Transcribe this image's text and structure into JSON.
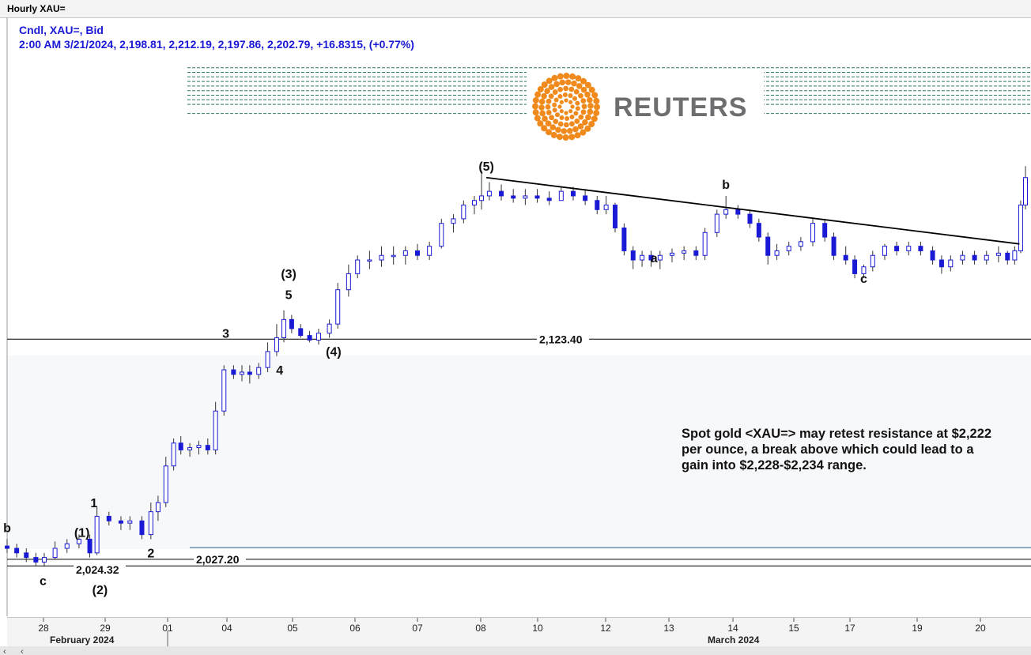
{
  "window": {
    "title": "Hourly XAU="
  },
  "info": {
    "line1": "Cndl, XAU=, Bid",
    "line2": "2:00 AM 3/21/2024, 2,198.81, 2,212.19, 2,197.86, 2,202.79, +16.8315, (+0.77%)"
  },
  "watermark": {
    "text": "REUTERS",
    "color": "#f08a1c"
  },
  "colors": {
    "candle": "#1a1ad6",
    "support_band": "#f7f8fa",
    "fib_lines": "#2a7a62",
    "trendline": "#000000"
  },
  "note": {
    "lines": [
      "Spot gold <XAU=> may retest resistance at $2,222",
      "per ounce, a break above which could lead to a",
      "gain into $2,228-$2,234 range."
    ]
  },
  "chart_data": {
    "type": "candlestick",
    "symbol": "XAU=",
    "interval": "hourly",
    "x_ticks": [
      "28",
      "29",
      "01",
      "04",
      "05",
      "06",
      "07",
      "08",
      "10",
      "12",
      "13",
      "14",
      "15",
      "17",
      "19",
      "20"
    ],
    "x_months": [
      "February 2024",
      "March 2024"
    ],
    "levels": [
      {
        "value": 2123.4,
        "label": "2,123.40"
      },
      {
        "value": 2027.2,
        "label": "2,027.20"
      },
      {
        "value": 2024.32,
        "label": "2,024.32"
      }
    ],
    "resistance_levels": [
      2222,
      2226,
      2228,
      2230,
      2232,
      2234,
      2236,
      2238,
      2240,
      2242
    ],
    "wave_labels": [
      {
        "text": "b",
        "x": 0.0,
        "y": 2039
      },
      {
        "text": "c",
        "x": 0.6,
        "y": 2016
      },
      {
        "text": "(1)",
        "x": 1.25,
        "y": 2037
      },
      {
        "text": "1",
        "x": 1.45,
        "y": 2050
      },
      {
        "text": "(2)",
        "x": 1.55,
        "y": 2012
      },
      {
        "text": "2",
        "x": 2.4,
        "y": 2028
      },
      {
        "text": "3",
        "x": 3.65,
        "y": 2124
      },
      {
        "text": "4",
        "x": 4.55,
        "y": 2108
      },
      {
        "text": "5",
        "x": 4.7,
        "y": 2141
      },
      {
        "text": "(3)",
        "x": 4.7,
        "y": 2150
      },
      {
        "text": "(4)",
        "x": 5.45,
        "y": 2116
      },
      {
        "text": "(5)",
        "x": 8.0,
        "y": 2197
      },
      {
        "text": "a",
        "x": 10.8,
        "y": 2157
      },
      {
        "text": "b",
        "x": 12.0,
        "y": 2189
      },
      {
        "text": "c",
        "x": 14.3,
        "y": 2148
      }
    ],
    "trendline": {
      "from": {
        "x": 8.0,
        "y": 2194
      },
      "to": {
        "x": 16.9,
        "y": 2165
      }
    },
    "candles": [
      [
        0.0,
        2033,
        2036,
        2030,
        2032
      ],
      [
        0.16,
        2032,
        2034,
        2028,
        2030
      ],
      [
        0.32,
        2030,
        2032,
        2026,
        2028
      ],
      [
        0.48,
        2028,
        2030,
        2024.32,
        2026
      ],
      [
        0.62,
        2026,
        2030,
        2024,
        2028
      ],
      [
        0.8,
        2028,
        2035,
        2027,
        2032
      ],
      [
        1.0,
        2032,
        2036,
        2030,
        2034
      ],
      [
        1.2,
        2034,
        2038,
        2032,
        2036
      ],
      [
        1.38,
        2036,
        2038,
        2028,
        2030
      ],
      [
        1.5,
        2030,
        2050,
        2029,
        2046
      ],
      [
        1.7,
        2046,
        2048,
        2042,
        2044
      ],
      [
        1.9,
        2044,
        2046,
        2040,
        2043
      ],
      [
        2.05,
        2043,
        2046,
        2040,
        2044
      ],
      [
        2.25,
        2044,
        2046,
        2036,
        2038
      ],
      [
        2.4,
        2038,
        2052,
        2036,
        2048
      ],
      [
        2.52,
        2048,
        2055,
        2044,
        2052
      ],
      [
        2.65,
        2052,
        2072,
        2050,
        2068
      ],
      [
        2.78,
        2068,
        2080,
        2066,
        2078
      ],
      [
        2.9,
        2078,
        2081,
        2073,
        2075
      ],
      [
        3.05,
        2075,
        2078,
        2072,
        2076
      ],
      [
        3.2,
        2076,
        2079,
        2073,
        2077
      ],
      [
        3.35,
        2077,
        2080,
        2073,
        2075
      ],
      [
        3.48,
        2075,
        2096,
        2073,
        2092
      ],
      [
        3.62,
        2092,
        2112,
        2090,
        2110
      ],
      [
        3.78,
        2110,
        2112,
        2106,
        2108
      ],
      [
        3.92,
        2108,
        2112,
        2105,
        2109
      ],
      [
        4.05,
        2109,
        2112,
        2104,
        2108
      ],
      [
        4.2,
        2108,
        2113,
        2106,
        2111
      ],
      [
        4.35,
        2111,
        2122,
        2109,
        2118
      ],
      [
        4.5,
        2118,
        2130,
        2116,
        2124
      ],
      [
        4.62,
        2124,
        2136,
        2122,
        2132
      ],
      [
        4.75,
        2132,
        2134,
        2126,
        2128
      ],
      [
        4.9,
        2128,
        2130,
        2124,
        2125
      ],
      [
        5.05,
        2125,
        2127,
        2122,
        2123
      ],
      [
        5.2,
        2123,
        2128,
        2121,
        2126
      ],
      [
        5.38,
        2126,
        2132,
        2124,
        2130
      ],
      [
        5.52,
        2130,
        2148,
        2128,
        2145
      ],
      [
        5.7,
        2145,
        2156,
        2142,
        2152
      ],
      [
        5.85,
        2152,
        2160,
        2150,
        2158
      ],
      [
        6.05,
        2158,
        2162,
        2154,
        2158
      ],
      [
        6.25,
        2158,
        2164,
        2155,
        2160
      ],
      [
        6.45,
        2160,
        2164,
        2156,
        2160
      ],
      [
        6.65,
        2160,
        2164,
        2156,
        2162
      ],
      [
        6.85,
        2162,
        2165,
        2158,
        2160
      ],
      [
        7.05,
        2160,
        2166,
        2158,
        2164
      ],
      [
        7.25,
        2164,
        2176,
        2163,
        2174
      ],
      [
        7.45,
        2174,
        2178,
        2170,
        2176
      ],
      [
        7.62,
        2176,
        2184,
        2174,
        2182
      ],
      [
        7.8,
        2182,
        2186,
        2178,
        2184
      ],
      [
        7.92,
        2184,
        2197,
        2180,
        2186
      ],
      [
        8.05,
        2186,
        2192,
        2184,
        2188
      ],
      [
        8.25,
        2188,
        2191,
        2184,
        2186
      ],
      [
        8.45,
        2186,
        2189,
        2183,
        2185
      ],
      [
        8.65,
        2185,
        2189,
        2182,
        2186
      ],
      [
        8.85,
        2186,
        2189,
        2183,
        2185
      ],
      [
        9.05,
        2185,
        2188,
        2182,
        2184
      ],
      [
        9.25,
        2184,
        2190,
        2184,
        2188
      ],
      [
        9.45,
        2188,
        2190,
        2184,
        2186
      ],
      [
        9.65,
        2186,
        2189,
        2182,
        2184
      ],
      [
        9.85,
        2184,
        2186,
        2178,
        2180
      ],
      [
        10.0,
        2180,
        2186,
        2178,
        2182
      ],
      [
        10.15,
        2182,
        2183,
        2170,
        2172
      ],
      [
        10.3,
        2172,
        2174,
        2160,
        2162
      ],
      [
        10.45,
        2162,
        2164,
        2154,
        2158
      ],
      [
        10.6,
        2158,
        2162,
        2155,
        2160
      ],
      [
        10.75,
        2160,
        2162,
        2155,
        2158
      ],
      [
        10.9,
        2158,
        2162,
        2154,
        2160
      ],
      [
        11.1,
        2160,
        2163,
        2157,
        2161
      ],
      [
        11.3,
        2161,
        2164,
        2158,
        2162
      ],
      [
        11.5,
        2162,
        2164,
        2158,
        2160
      ],
      [
        11.65,
        2160,
        2172,
        2158,
        2170
      ],
      [
        11.85,
        2170,
        2180,
        2168,
        2178
      ],
      [
        12.0,
        2178,
        2186,
        2176,
        2180
      ],
      [
        12.2,
        2180,
        2182,
        2176,
        2178
      ],
      [
        12.4,
        2178,
        2180,
        2172,
        2174
      ],
      [
        12.55,
        2174,
        2176,
        2166,
        2168
      ],
      [
        12.7,
        2168,
        2170,
        2156,
        2160
      ],
      [
        12.85,
        2160,
        2165,
        2158,
        2162
      ],
      [
        13.05,
        2162,
        2166,
        2160,
        2164
      ],
      [
        13.25,
        2164,
        2168,
        2162,
        2166
      ],
      [
        13.45,
        2166,
        2176,
        2164,
        2174
      ],
      [
        13.65,
        2174,
        2176,
        2166,
        2168
      ],
      [
        13.8,
        2168,
        2170,
        2158,
        2160
      ],
      [
        14.0,
        2160,
        2164,
        2156,
        2158
      ],
      [
        14.15,
        2158,
        2160,
        2150,
        2152
      ],
      [
        14.3,
        2152,
        2156,
        2150,
        2155
      ],
      [
        14.45,
        2155,
        2162,
        2153,
        2160
      ],
      [
        14.65,
        2160,
        2165,
        2158,
        2164
      ],
      [
        14.85,
        2164,
        2166,
        2160,
        2162
      ],
      [
        15.05,
        2162,
        2166,
        2160,
        2164
      ],
      [
        15.25,
        2164,
        2166,
        2160,
        2162
      ],
      [
        15.45,
        2162,
        2164,
        2156,
        2158
      ],
      [
        15.6,
        2158,
        2160,
        2152,
        2155
      ],
      [
        15.75,
        2155,
        2160,
        2153,
        2158
      ],
      [
        15.95,
        2158,
        2162,
        2156,
        2160
      ],
      [
        16.15,
        2160,
        2162,
        2156,
        2158
      ],
      [
        16.35,
        2158,
        2162,
        2156,
        2160
      ],
      [
        16.55,
        2160,
        2164,
        2157,
        2161
      ],
      [
        16.7,
        2161,
        2162,
        2156,
        2158
      ],
      [
        16.82,
        2158,
        2164,
        2156,
        2162
      ],
      [
        16.92,
        2162,
        2184,
        2161,
        2182
      ],
      [
        17.0,
        2182,
        2199,
        2180,
        2194
      ]
    ],
    "ylim": [
      2003,
      2264
    ],
    "xlim": [
      0,
      17.0
    ],
    "grid": false
  }
}
